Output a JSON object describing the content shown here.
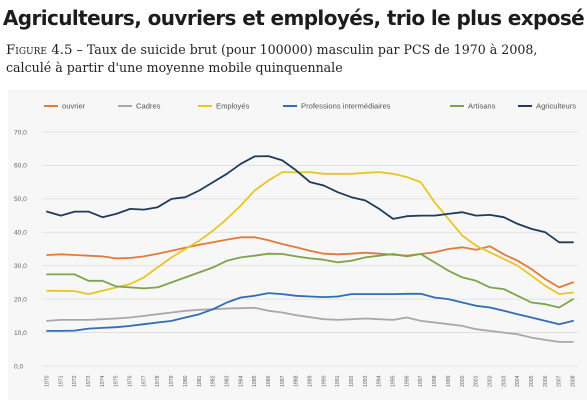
{
  "headline": "Agriculteurs, ouvriers et employés, trio le plus exposé",
  "caption": {
    "figure_label": "Figure 4.5",
    "text": " – Taux de suicide brut (pour 100000) masculin par PCS de 1970 à 2008, calculé à partir d'une moyenne mobile quinquennale"
  },
  "chart_data": {
    "type": "line",
    "title": "",
    "xlabel": "",
    "ylabel": "",
    "ylim": [
      0,
      70
    ],
    "yticks": [
      "0,0",
      "10,0",
      "20,0",
      "30,0",
      "40,0",
      "50,0",
      "60,0",
      "70,0"
    ],
    "grid": "horizontal",
    "legend_position": "top",
    "x": [
      1970,
      1971,
      1972,
      1973,
      1974,
      1975,
      1976,
      1977,
      1978,
      1979,
      1980,
      1981,
      1982,
      1983,
      1984,
      1985,
      1986,
      1987,
      1988,
      1989,
      1990,
      1991,
      1992,
      1993,
      1994,
      1995,
      1996,
      1997,
      1998,
      1999,
      2000,
      2001,
      2002,
      2003,
      2004,
      2005,
      2006,
      2007,
      2008
    ],
    "series": [
      {
        "name": "ouvrier",
        "color": "#e07b39",
        "values": [
          33.2,
          33.4,
          33.2,
          33.0,
          32.8,
          32.2,
          32.3,
          32.8,
          33.6,
          34.5,
          35.4,
          36.3,
          37.0,
          37.8,
          38.5,
          38.5,
          37.6,
          36.5,
          35.5,
          34.5,
          33.6,
          33.4,
          33.6,
          33.9,
          33.6,
          33.3,
          33.0,
          33.5,
          34.0,
          35.0,
          35.5,
          34.8,
          35.8,
          33.4,
          31.5,
          29.0,
          26.0,
          23.5,
          25.0
        ]
      },
      {
        "name": "Cadres",
        "color": "#a8a8a8",
        "values": [
          13.5,
          13.8,
          13.8,
          13.8,
          14.0,
          14.2,
          14.5,
          15.0,
          15.5,
          16.0,
          16.5,
          16.8,
          17.0,
          17.2,
          17.3,
          17.4,
          16.5,
          16.0,
          15.2,
          14.6,
          14.0,
          13.8,
          14.0,
          14.2,
          14.0,
          13.8,
          14.5,
          13.5,
          13.0,
          12.5,
          12.0,
          11.0,
          10.5,
          10.0,
          9.5,
          8.5,
          7.8,
          7.2,
          7.2
        ]
      },
      {
        "name": "Employés",
        "color": "#e8c52a",
        "values": [
          22.5,
          22.5,
          22.4,
          21.5,
          22.5,
          23.5,
          24.5,
          26.5,
          29.5,
          32.5,
          35.0,
          37.5,
          40.5,
          44.0,
          48.0,
          52.5,
          55.5,
          58.0,
          57.9,
          58.0,
          57.5,
          57.5,
          57.5,
          57.8,
          58.0,
          57.5,
          56.5,
          55.0,
          49.0,
          44.0,
          39.0,
          36.0,
          34.0,
          32.0,
          30.0,
          27.0,
          24.0,
          21.5,
          22.0
        ]
      },
      {
        "name": "Professions intermédiaires",
        "color": "#2f6db5",
        "values": [
          10.5,
          10.5,
          10.6,
          11.2,
          11.4,
          11.6,
          12.0,
          12.5,
          13.0,
          13.5,
          14.5,
          15.5,
          17.0,
          19.0,
          20.5,
          21.0,
          21.8,
          21.5,
          21.0,
          20.8,
          20.6,
          20.8,
          21.5,
          21.5,
          21.5,
          21.5,
          21.6,
          21.6,
          20.5,
          20.0,
          19.0,
          18.0,
          17.5,
          16.5,
          15.5,
          14.5,
          13.5,
          12.5,
          13.5
        ]
      },
      {
        "name": "Artisans",
        "color": "#7fa34a",
        "values": [
          27.4,
          27.4,
          27.4,
          25.5,
          25.5,
          23.8,
          23.5,
          23.2,
          23.5,
          25.0,
          26.5,
          28.0,
          29.5,
          31.5,
          32.5,
          33.0,
          33.6,
          33.5,
          32.8,
          32.2,
          31.8,
          31.0,
          31.5,
          32.5,
          33.0,
          33.5,
          32.8,
          33.5,
          31.0,
          28.5,
          26.5,
          25.5,
          23.5,
          23.0,
          21.0,
          19.0,
          18.5,
          17.5,
          20.0
        ]
      },
      {
        "name": "Agriculteurs",
        "color": "#1f3a5a",
        "values": [
          46.2,
          45.0,
          46.2,
          46.2,
          44.5,
          45.5,
          47.0,
          46.8,
          47.5,
          50.0,
          50.5,
          52.5,
          55.0,
          57.5,
          60.5,
          62.7,
          62.8,
          61.5,
          58.5,
          55.0,
          54.0,
          52.0,
          50.5,
          49.5,
          47.0,
          44.0,
          44.8,
          45.0,
          45.0,
          45.5,
          46.0,
          45.0,
          45.2,
          44.5,
          42.5,
          41.0,
          40.0,
          37.0,
          37.0
        ]
      }
    ]
  }
}
